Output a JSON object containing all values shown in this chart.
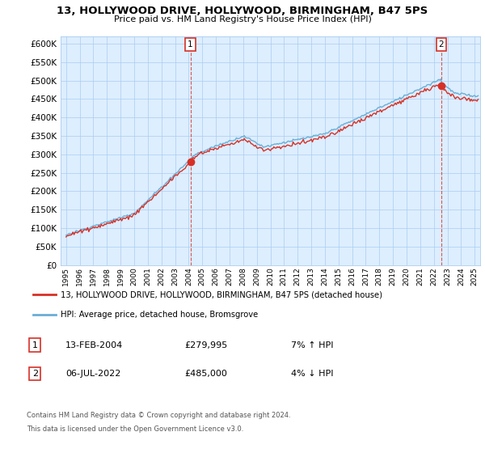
{
  "title": "13, HOLLYWOOD DRIVE, HOLLYWOOD, BIRMINGHAM, B47 5PS",
  "subtitle": "Price paid vs. HM Land Registry's House Price Index (HPI)",
  "ylim": [
    0,
    620000
  ],
  "yticks": [
    0,
    50000,
    100000,
    150000,
    200000,
    250000,
    300000,
    350000,
    400000,
    450000,
    500000,
    550000,
    600000
  ],
  "legend_entry1": "13, HOLLYWOOD DRIVE, HOLLYWOOD, BIRMINGHAM, B47 5PS (detached house)",
  "legend_entry2": "HPI: Average price, detached house, Bromsgrove",
  "label1_date": "13-FEB-2004",
  "label1_price": "£279,995",
  "label1_hpi": "7% ↑ HPI",
  "label2_date": "06-JUL-2022",
  "label2_price": "£485,000",
  "label2_hpi": "4% ↓ HPI",
  "footer1": "Contains HM Land Registry data © Crown copyright and database right 2024.",
  "footer2": "This data is licensed under the Open Government Licence v3.0.",
  "hpi_color": "#6baed6",
  "price_color": "#d73027",
  "background_color": "#ffffff",
  "plot_bg_color": "#ddeeff",
  "grid_color": "#aaccee"
}
